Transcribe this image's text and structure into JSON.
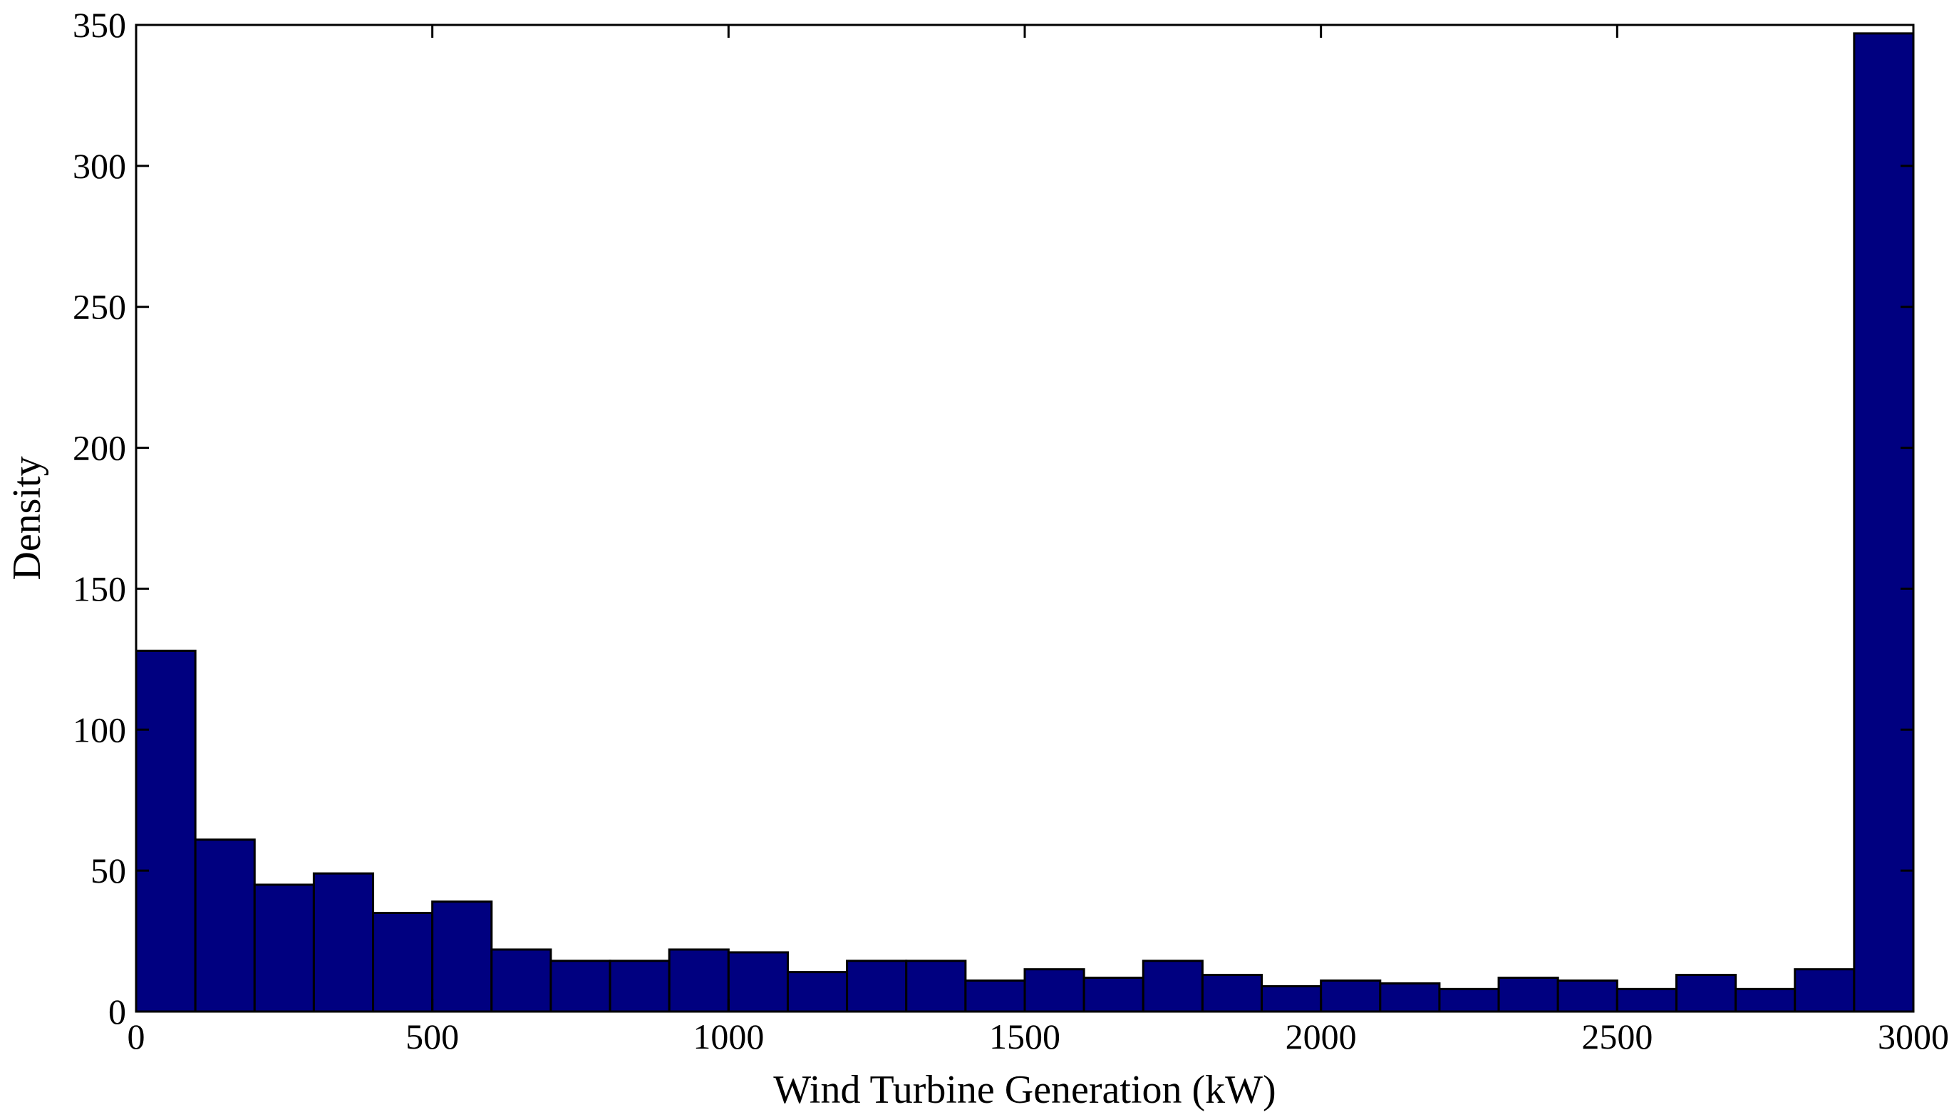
{
  "chart_data": {
    "type": "bar",
    "histogram": true,
    "title": "",
    "xlabel": "Wind Turbine Generation (kW)",
    "ylabel": "Density",
    "xlim": [
      0,
      3000
    ],
    "ylim": [
      0,
      350
    ],
    "bin_width": 100,
    "x_bin_starts": [
      0,
      100,
      200,
      300,
      400,
      500,
      600,
      700,
      800,
      900,
      1000,
      1100,
      1200,
      1300,
      1400,
      1500,
      1600,
      1700,
      1800,
      1900,
      2000,
      2100,
      2200,
      2300,
      2400,
      2500,
      2600,
      2700,
      2800,
      2900
    ],
    "values": [
      128,
      61,
      45,
      49,
      35,
      39,
      22,
      18,
      18,
      22,
      21,
      14,
      18,
      18,
      11,
      15,
      12,
      18,
      13,
      9,
      11,
      10,
      8,
      12,
      11,
      8,
      13,
      8,
      15,
      347
    ],
    "xticks": [
      0,
      500,
      1000,
      1500,
      2000,
      2500,
      3000
    ],
    "xtick_labels": [
      "0",
      "500",
      "1000",
      "1500",
      "2000",
      "2500",
      "3000"
    ],
    "yticks": [
      0,
      50,
      100,
      150,
      200,
      250,
      300,
      350
    ],
    "ytick_labels": [
      "0",
      "50",
      "100",
      "150",
      "200",
      "250",
      "300",
      "350"
    ],
    "bar_color": "#000080",
    "grid": false,
    "legend": "none"
  }
}
